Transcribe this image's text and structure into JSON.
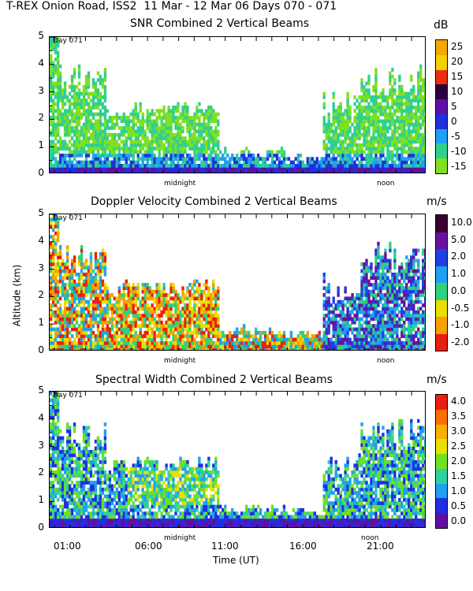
{
  "title": "T-REX Onion Road, ISS2  11 Mar - 12 Mar 06 Days 070 - 071",
  "day_label": "Day 071",
  "yaxis_label": "Altitude (km)",
  "xaxis_title": "Time (UT)",
  "marker_midnight": "midnight",
  "marker_noon": "noon",
  "chart_data": [
    {
      "type": "heatmap",
      "title": "SNR Combined 2 Vertical Beams",
      "units": "dB",
      "ylabel": "Altitude (km)",
      "ylim": [
        0,
        5
      ],
      "yticks": [
        "0",
        "1",
        "2",
        "3",
        "4",
        "5"
      ],
      "colorbar_labels": [
        "25",
        "20",
        "15",
        "10",
        "5",
        "0",
        "-5",
        "-10",
        "-15"
      ],
      "colorbar_colors": [
        "#f5a800",
        "#f5d000",
        "#e83010",
        "#2a0040",
        "#6010a0",
        "#2030e0",
        "#20a0f0",
        "#30d090",
        "#80e020"
      ]
    },
    {
      "type": "heatmap",
      "title": "Doppler Velocity Combined 2 Vertical Beams",
      "units": "m/s",
      "ylabel": "Altitude (km)",
      "ylim": [
        0,
        5
      ],
      "yticks": [
        "0",
        "1",
        "2",
        "3",
        "4",
        "5"
      ],
      "colorbar_labels": [
        "10.0",
        "5.0",
        "2.0",
        "1.0",
        "0.0",
        "-0.5",
        "-1.0",
        "-2.0"
      ],
      "colorbar_colors": [
        "#3a0030",
        "#6a10a0",
        "#2040e0",
        "#20a0f0",
        "#30d080",
        "#e8e000",
        "#f8a000",
        "#e82010"
      ]
    },
    {
      "type": "heatmap",
      "title": "Spectral Width Combined 2 Vertical Beams",
      "units": "m/s",
      "xlabel": "Time (UT)",
      "ylabel": "Altitude (km)",
      "ylim": [
        0,
        5
      ],
      "yticks": [
        "0",
        "1",
        "2",
        "3",
        "4",
        "5"
      ],
      "xticks": [
        "01:00",
        "06:00",
        "11:00",
        "16:00",
        "21:00"
      ],
      "colorbar_labels": [
        "4.0",
        "3.5",
        "3.0",
        "2.5",
        "2.0",
        "1.5",
        "1.0",
        "0.5",
        "0.0"
      ],
      "colorbar_colors": [
        "#e82010",
        "#f87000",
        "#f8b000",
        "#e8e000",
        "#70e020",
        "#30d0a0",
        "#20a0f0",
        "#2030e0",
        "#6010a0"
      ]
    }
  ]
}
